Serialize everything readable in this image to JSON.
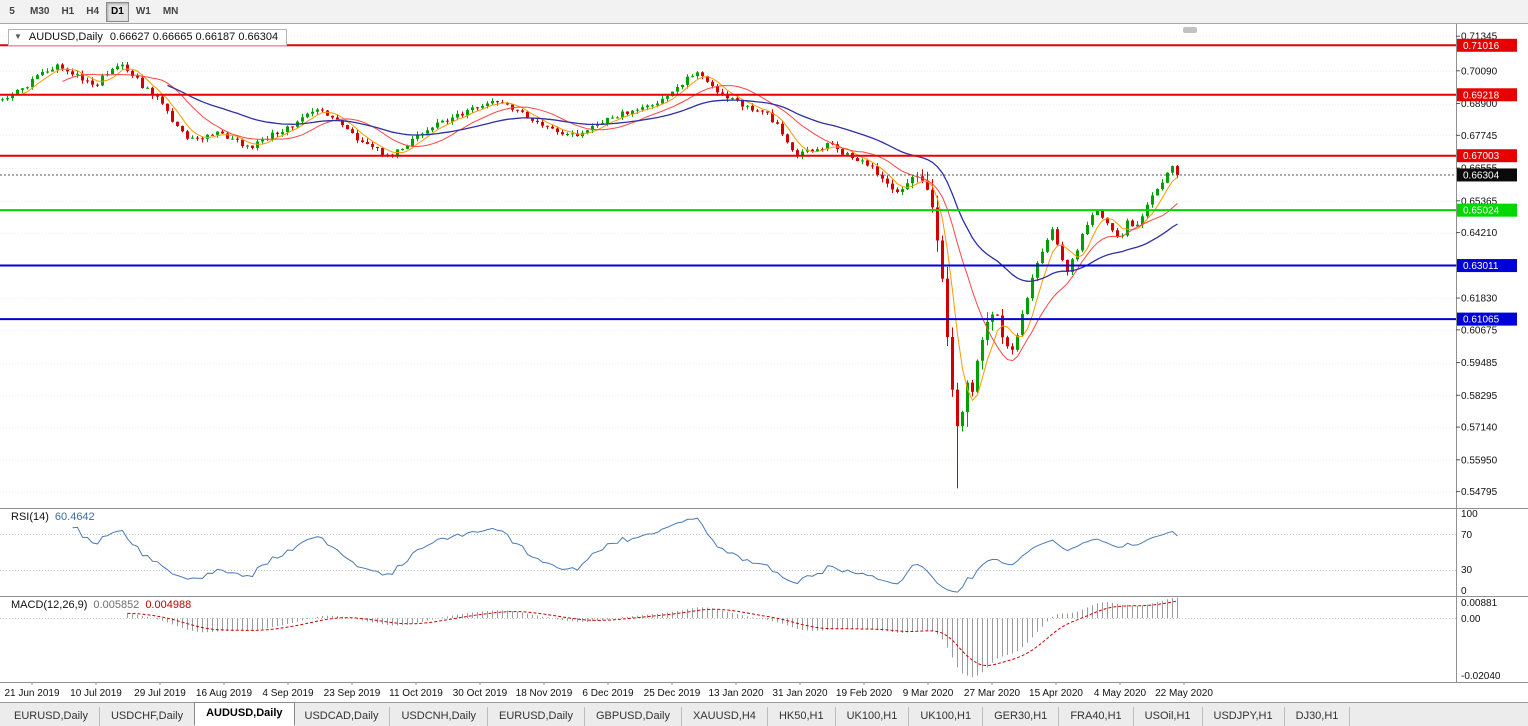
{
  "toolbar": {
    "timeframes": [
      {
        "label": "5",
        "active": false
      },
      {
        "label": "M30",
        "active": false
      },
      {
        "label": "H1",
        "active": false
      },
      {
        "label": "H4",
        "active": false
      },
      {
        "label": "D1",
        "active": true
      },
      {
        "label": "W1",
        "active": false
      },
      {
        "label": "MN",
        "active": false
      }
    ]
  },
  "icons": {
    "collapse_caret": "▼"
  },
  "title": {
    "symbol": "AUDUSD,Daily",
    "ohlc_text": "0.66627 0.66665 0.66187 0.66304"
  },
  "colors": {
    "candle_up": "#00A000",
    "candle_down": "#D40000",
    "ma_fast": "#FF9900",
    "ma_mid": "#FF4444",
    "ma_slow": "#2F2FA8",
    "rsi_line": "#4A7AB5",
    "macd_hist": "#9B9B9B",
    "macd_signal": "#CC0000",
    "grid": "#EDEDED",
    "axis_text": "#111111",
    "current_label_bg": "#0A0A0A"
  },
  "chart_data": {
    "type": "candlestick",
    "symbol": "AUDUSD",
    "timeframe": "Daily",
    "candle_count": 236,
    "y_domain": [
      0.542,
      0.7179
    ],
    "y_ticks": [
      "0.71345",
      "0.70090",
      "0.68900",
      "0.67745",
      "0.66555",
      "0.65365",
      "0.64210",
      "0.63020",
      "0.61830",
      "0.60675",
      "0.59485",
      "0.58295",
      "0.57140",
      "0.55950",
      "0.54795"
    ],
    "ohlc_last": {
      "open": 0.66627,
      "high": 0.66665,
      "low": 0.66187,
      "close": 0.66304
    },
    "current_price": 0.66304,
    "current_price_label": "0.66304",
    "price_min_wick": 0.5492,
    "hlines": [
      {
        "price": 0.71016,
        "label": "0.71016",
        "color": "#E80000"
      },
      {
        "price": 0.69218,
        "label": "0.69218",
        "color": "#E80000"
      },
      {
        "price": 0.67003,
        "label": "0.67003",
        "color": "#E80000"
      },
      {
        "price": 0.65024,
        "label": "0.65024",
        "color": "#00D800"
      },
      {
        "price": 0.63011,
        "label": "0.63011",
        "color": "#0000D8"
      },
      {
        "price": 0.61065,
        "label": "0.61065",
        "color": "#0000D8"
      }
    ],
    "dates": [
      "21 Jun 2019",
      "10 Jul 2019",
      "29 Jul 2019",
      "16 Aug 2019",
      "4 Sep 2019",
      "23 Sep 2019",
      "11 Oct 2019",
      "30 Oct 2019",
      "18 Nov 2019",
      "6 Dec 2019",
      "25 Dec 2019",
      "13 Jan 2020",
      "31 Jan 2020",
      "19 Feb 2020",
      "9 Mar 2020",
      "27 Mar 2020",
      "15 Apr 2020",
      "4 May 2020",
      "22 May 2020"
    ],
    "price_path": [
      [
        0.0,
        0.6905
      ],
      [
        0.01,
        0.693
      ],
      [
        0.022,
        0.696
      ],
      [
        0.035,
        0.7
      ],
      [
        0.048,
        0.7025
      ],
      [
        0.06,
        0.7
      ],
      [
        0.072,
        0.697
      ],
      [
        0.081,
        0.696
      ],
      [
        0.09,
        0.701
      ],
      [
        0.1,
        0.7035
      ],
      [
        0.11,
        0.7
      ],
      [
        0.12,
        0.695
      ],
      [
        0.135,
        0.6895
      ],
      [
        0.145,
        0.683
      ],
      [
        0.155,
        0.677
      ],
      [
        0.165,
        0.6755
      ],
      [
        0.178,
        0.6785
      ],
      [
        0.19,
        0.6775
      ],
      [
        0.2,
        0.675
      ],
      [
        0.212,
        0.6735
      ],
      [
        0.225,
        0.6765
      ],
      [
        0.244,
        0.6805
      ],
      [
        0.258,
        0.684
      ],
      [
        0.27,
        0.687
      ],
      [
        0.283,
        0.684
      ],
      [
        0.298,
        0.6775
      ],
      [
        0.312,
        0.6735
      ],
      [
        0.328,
        0.67
      ],
      [
        0.34,
        0.673
      ],
      [
        0.352,
        0.6765
      ],
      [
        0.365,
        0.68
      ],
      [
        0.378,
        0.683
      ],
      [
        0.392,
        0.685
      ],
      [
        0.406,
        0.688
      ],
      [
        0.42,
        0.6893
      ],
      [
        0.435,
        0.687
      ],
      [
        0.448,
        0.684
      ],
      [
        0.461,
        0.681
      ],
      [
        0.474,
        0.6785
      ],
      [
        0.488,
        0.677
      ],
      [
        0.502,
        0.68
      ],
      [
        0.515,
        0.6835
      ],
      [
        0.53,
        0.6855
      ],
      [
        0.545,
        0.687
      ],
      [
        0.56,
        0.6895
      ],
      [
        0.572,
        0.693
      ],
      [
        0.582,
        0.6975
      ],
      [
        0.59,
        0.7008
      ],
      [
        0.6,
        0.6965
      ],
      [
        0.612,
        0.692
      ],
      [
        0.623,
        0.69
      ],
      [
        0.637,
        0.6872
      ],
      [
        0.65,
        0.6855
      ],
      [
        0.662,
        0.68
      ],
      [
        0.672,
        0.673
      ],
      [
        0.677,
        0.67
      ],
      [
        0.686,
        0.6715
      ],
      [
        0.696,
        0.673
      ],
      [
        0.706,
        0.6745
      ],
      [
        0.716,
        0.671
      ],
      [
        0.726,
        0.669
      ],
      [
        0.732,
        0.668
      ],
      [
        0.74,
        0.666
      ],
      [
        0.75,
        0.6615
      ],
      [
        0.76,
        0.6555
      ],
      [
        0.768,
        0.659
      ],
      [
        0.775,
        0.663
      ],
      [
        0.781,
        0.661
      ],
      [
        0.786,
        0.659
      ],
      [
        0.793,
        0.647
      ],
      [
        0.799,
        0.63
      ],
      [
        0.804,
        0.606
      ],
      [
        0.808,
        0.588
      ],
      [
        0.812,
        0.573
      ],
      [
        0.816,
        0.577
      ],
      [
        0.82,
        0.59
      ],
      [
        0.826,
        0.583
      ],
      [
        0.832,
        0.599
      ],
      [
        0.838,
        0.608
      ],
      [
        0.845,
        0.613
      ],
      [
        0.852,
        0.604
      ],
      [
        0.858,
        0.5985
      ],
      [
        0.865,
        0.607
      ],
      [
        0.872,
        0.618
      ],
      [
        0.88,
        0.631
      ],
      [
        0.888,
        0.638
      ],
      [
        0.894,
        0.643
      ],
      [
        0.9,
        0.635
      ],
      [
        0.906,
        0.627
      ],
      [
        0.912,
        0.633
      ],
      [
        0.918,
        0.64
      ],
      [
        0.924,
        0.645
      ],
      [
        0.93,
        0.651
      ],
      [
        0.938,
        0.6465
      ],
      [
        0.945,
        0.643
      ],
      [
        0.952,
        0.64
      ],
      [
        0.958,
        0.6465
      ],
      [
        0.964,
        0.643
      ],
      [
        0.97,
        0.648
      ],
      [
        0.976,
        0.653
      ],
      [
        0.982,
        0.657
      ],
      [
        0.988,
        0.661
      ],
      [
        0.994,
        0.6655
      ],
      [
        1.0,
        0.663
      ]
    ],
    "rsi": {
      "name": "RSI(14)",
      "value": "60.4642",
      "period": 14,
      "levels": [
        70,
        30
      ],
      "axis_labels": [
        "100",
        "70",
        "30",
        "0"
      ]
    },
    "macd": {
      "name": "MACD(12,26,9)",
      "value_main": "0.005852",
      "value_signal": "0.004988",
      "fast": 12,
      "slow": 26,
      "signal": 9,
      "axis_labels": [
        "0.00881",
        "0.00",
        "-0.02040"
      ]
    }
  },
  "tabs": {
    "active_index": 2,
    "items": [
      "EURUSD,Daily",
      "USDCHF,Daily",
      "AUDUSD,Daily",
      "USDCAD,Daily",
      "USDCNH,Daily",
      "EURUSD,Daily",
      "GBPUSD,Daily",
      "XAUUSD,H4",
      "HK50,H1",
      "UK100,H1",
      "UK100,H1",
      "GER30,H1",
      "FRA40,H1",
      "USOil,H1",
      "USDJPY,H1",
      "DJ30,H1"
    ]
  }
}
